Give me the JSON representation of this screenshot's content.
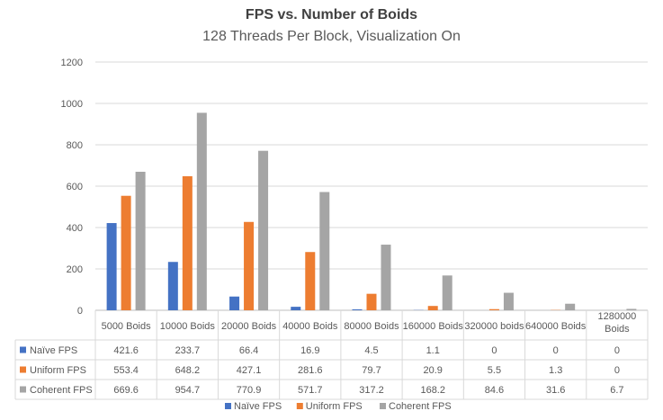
{
  "chart_data": {
    "type": "bar",
    "title": "FPS vs. Number of Boids",
    "subtitle": "128 Threads Per Block, Visualization On",
    "xlabel": "",
    "ylabel": "",
    "ylim": [
      0,
      1200
    ],
    "yticks": [
      0,
      200,
      400,
      600,
      800,
      1000,
      1200
    ],
    "grid": true,
    "legend_position": "bottom",
    "categories": [
      "5000 Boids",
      "10000 Boids",
      "20000 Boids",
      "40000 Boids",
      "80000 Boids",
      "160000 Boids",
      "320000 boids",
      "640000 Boids",
      "1280000 Boids"
    ],
    "data_table": true,
    "series": [
      {
        "name": "Naïve FPS",
        "color": "#4472C4",
        "values": [
          421.6,
          233.7,
          66.4,
          16.9,
          4.5,
          1.1,
          0,
          0,
          0
        ]
      },
      {
        "name": "Uniform FPS",
        "color": "#ED7D31",
        "values": [
          553.4,
          648.2,
          427.1,
          281.6,
          79.7,
          20.9,
          5.5,
          1.3,
          0
        ]
      },
      {
        "name": "Coherent FPS",
        "color": "#A5A5A5",
        "values": [
          669.6,
          954.7,
          770.9,
          571.7,
          317.2,
          168.2,
          84.6,
          31.6,
          6.7
        ]
      }
    ]
  }
}
